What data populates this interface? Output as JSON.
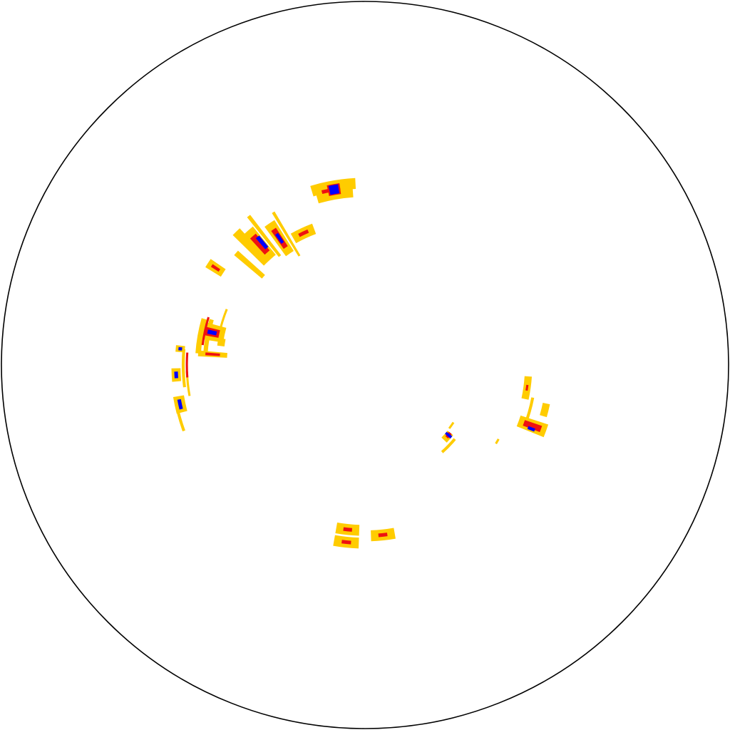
{
  "chart_data": {
    "type": "heatmap",
    "projection": "polar-disk",
    "title": "",
    "legend": "none",
    "grid": false,
    "boundary": {
      "show": true,
      "color": "#000000"
    },
    "colors": {
      "low": "#ffcc00",
      "mid": "#ee1111",
      "high": "#0000ff",
      "background": "#ffffff"
    },
    "cells": [
      {
        "angle": 100,
        "radius": 0.5,
        "dAngle": 14,
        "dRadius": 0.03,
        "level": "low"
      },
      {
        "angle": 100,
        "radius": 0.475,
        "dAngle": 12,
        "dRadius": 0.025,
        "level": "low"
      },
      {
        "angle": 101,
        "radius": 0.49,
        "dAngle": 6,
        "dRadius": 0.01,
        "level": "mid"
      },
      {
        "angle": 100,
        "radius": 0.49,
        "dAngle": 4,
        "dRadius": 0.03,
        "level": "mid"
      },
      {
        "angle": 100,
        "radius": 0.49,
        "dAngle": 3,
        "dRadius": 0.025,
        "level": "high"
      },
      {
        "angle": 115,
        "radius": 0.4,
        "dAngle": 9,
        "dRadius": 0.03,
        "level": "low"
      },
      {
        "angle": 115,
        "radius": 0.4,
        "dAngle": 4,
        "dRadius": 0.01,
        "level": "mid"
      },
      {
        "angle": 131,
        "radius": 0.44,
        "dAngle": 4,
        "dRadius": 0.1,
        "level": "low"
      },
      {
        "angle": 134,
        "radius": 0.45,
        "dAngle": 3,
        "dRadius": 0.12,
        "level": "low"
      },
      {
        "angle": 131,
        "radius": 0.44,
        "dAngle": 2.5,
        "dRadius": 0.06,
        "level": "mid"
      },
      {
        "angle": 130,
        "radius": 0.44,
        "dAngle": 1.5,
        "dRadius": 0.04,
        "level": "high"
      },
      {
        "angle": 139,
        "radius": 0.42,
        "dAngle": 2,
        "dRadius": 0.1,
        "level": "low"
      },
      {
        "angle": 128,
        "radius": 0.45,
        "dAngle": 1.2,
        "dRadius": 0.14,
        "level": "low"
      },
      {
        "angle": 124,
        "radius": 0.42,
        "dAngle": 4,
        "dRadius": 0.1,
        "level": "low"
      },
      {
        "angle": 124,
        "radius": 0.42,
        "dAngle": 2,
        "dRadius": 0.06,
        "level": "mid"
      },
      {
        "angle": 124,
        "radius": 0.42,
        "dAngle": 1.2,
        "dRadius": 0.03,
        "level": "high"
      },
      {
        "angle": 121,
        "radius": 0.42,
        "dAngle": 1,
        "dRadius": 0.14,
        "level": "low"
      },
      {
        "angle": 147,
        "radius": 0.49,
        "dAngle": 3,
        "dRadius": 0.05,
        "level": "low"
      },
      {
        "angle": 147,
        "radius": 0.49,
        "dAngle": 1,
        "dRadius": 0.025,
        "level": "mid"
      },
      {
        "angle": 168,
        "radius": 0.43,
        "dAngle": 6,
        "dRadius": 0.07,
        "level": "low"
      },
      {
        "angle": 168,
        "radius": 0.43,
        "dAngle": 3,
        "dRadius": 0.04,
        "level": "mid"
      },
      {
        "angle": 168,
        "radius": 0.43,
        "dAngle": 1.5,
        "dRadius": 0.025,
        "level": "high"
      },
      {
        "angle": 176,
        "radius": 0.42,
        "dAngle": 2,
        "dRadius": 0.08,
        "level": "low"
      },
      {
        "angle": 176,
        "radius": 0.42,
        "dAngle": 1,
        "dRadius": 0.04,
        "level": "mid"
      },
      {
        "angle": 170,
        "radius": 0.46,
        "dAngle": 12,
        "dRadius": 0.015,
        "level": "low"
      },
      {
        "angle": 170,
        "radius": 0.44,
        "dAngle": 13,
        "dRadius": 0.012,
        "level": "low"
      },
      {
        "angle": 168,
        "radius": 0.45,
        "dAngle": 10,
        "dRadius": 0.006,
        "level": "mid"
      },
      {
        "angle": 163,
        "radius": 0.41,
        "dAngle": 10,
        "dRadius": 0.006,
        "level": "low"
      },
      {
        "angle": 171,
        "radius": 0.4,
        "dAngle": 3,
        "dRadius": 0.02,
        "level": "low"
      },
      {
        "angle": 175,
        "radius": 0.51,
        "dAngle": 2,
        "dRadius": 0.025,
        "level": "low"
      },
      {
        "angle": 175,
        "radius": 0.51,
        "dAngle": 1,
        "dRadius": 0.01,
        "level": "high"
      },
      {
        "angle": 183,
        "radius": 0.52,
        "dAngle": 4,
        "dRadius": 0.025,
        "level": "low"
      },
      {
        "angle": 183,
        "radius": 0.52,
        "dAngle": 2,
        "dRadius": 0.01,
        "level": "high"
      },
      {
        "angle": 181,
        "radius": 0.5,
        "dAngle": 12,
        "dRadius": 0.008,
        "level": "low"
      },
      {
        "angle": 180,
        "radius": 0.49,
        "dAngle": 8,
        "dRadius": 0.006,
        "level": "mid"
      },
      {
        "angle": 192,
        "radius": 0.52,
        "dAngle": 5,
        "dRadius": 0.03,
        "level": "low"
      },
      {
        "angle": 192,
        "radius": 0.52,
        "dAngle": 3,
        "dRadius": 0.01,
        "level": "high"
      },
      {
        "angle": 195,
        "radius": 0.53,
        "dAngle": 10,
        "dRadius": 0.008,
        "level": "low"
      },
      {
        "angle": 186,
        "radius": 0.49,
        "dAngle": 8,
        "dRadius": 0.006,
        "level": "low"
      },
      {
        "angle": 264,
        "radius": 0.49,
        "dAngle": 8,
        "dRadius": 0.03,
        "level": "low"
      },
      {
        "angle": 264,
        "radius": 0.49,
        "dAngle": 3,
        "dRadius": 0.01,
        "level": "mid"
      },
      {
        "angle": 264,
        "radius": 0.455,
        "dAngle": 8,
        "dRadius": 0.03,
        "level": "low"
      },
      {
        "angle": 264,
        "radius": 0.455,
        "dAngle": 3,
        "dRadius": 0.01,
        "level": "mid"
      },
      {
        "angle": 276,
        "radius": 0.47,
        "dAngle": 8,
        "dRadius": 0.03,
        "level": "low"
      },
      {
        "angle": 276,
        "radius": 0.47,
        "dAngle": 3,
        "dRadius": 0.01,
        "level": "mid"
      },
      {
        "angle": 319,
        "radius": 0.3,
        "dAngle": 5,
        "dRadius": 0.02,
        "level": "low"
      },
      {
        "angle": 316,
        "radius": 0.32,
        "dAngle": 9,
        "dRadius": 0.008,
        "level": "low"
      },
      {
        "angle": 320,
        "radius": 0.3,
        "dAngle": 3,
        "dRadius": 0.01,
        "level": "mid"
      },
      {
        "angle": 320,
        "radius": 0.3,
        "dAngle": 1.5,
        "dRadius": 0.02,
        "level": "high"
      },
      {
        "angle": 325,
        "radius": 0.29,
        "dAngle": 4,
        "dRadius": 0.006,
        "level": "low"
      },
      {
        "angle": 340,
        "radius": 0.49,
        "dAngle": 4,
        "dRadius": 0.08,
        "level": "low"
      },
      {
        "angle": 340,
        "radius": 0.49,
        "dAngle": 2,
        "dRadius": 0.05,
        "level": "mid"
      },
      {
        "angle": 339,
        "radius": 0.49,
        "dAngle": 1,
        "dRadius": 0.02,
        "level": "high"
      },
      {
        "angle": 346,
        "radius": 0.51,
        "dAngle": 4,
        "dRadius": 0.02,
        "level": "low"
      },
      {
        "angle": 344,
        "radius": 0.47,
        "dAngle": 10,
        "dRadius": 0.008,
        "level": "low"
      },
      {
        "angle": 352,
        "radius": 0.45,
        "dAngle": 8,
        "dRadius": 0.02,
        "level": "low"
      },
      {
        "angle": 352,
        "radius": 0.45,
        "dAngle": 2,
        "dRadius": 0.006,
        "level": "mid"
      },
      {
        "angle": 330,
        "radius": 0.42,
        "dAngle": 2,
        "dRadius": 0.006,
        "level": "low"
      }
    ]
  }
}
